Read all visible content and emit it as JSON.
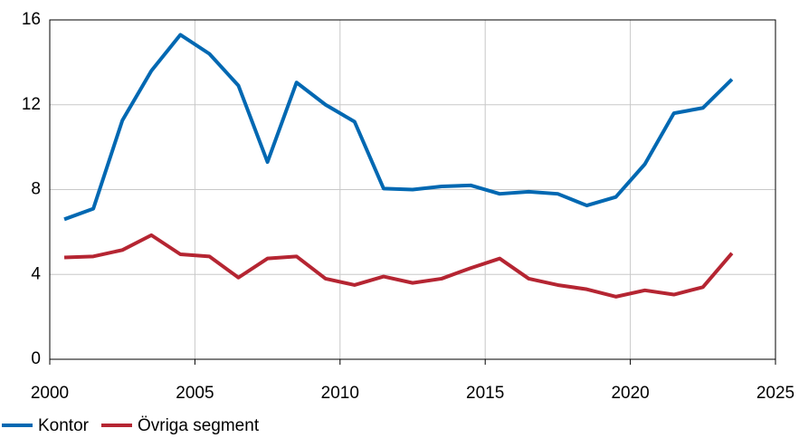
{
  "chart_data": {
    "type": "line",
    "x": [
      2000.5,
      2001.5,
      2002.5,
      2003.5,
      2004.5,
      2005.5,
      2006.5,
      2007.5,
      2008.5,
      2009.5,
      2010.5,
      2011.5,
      2012.5,
      2013.5,
      2014.5,
      2015.5,
      2016.5,
      2017.5,
      2018.5,
      2019.5,
      2020.5,
      2021.5,
      2022.5,
      2023.5
    ],
    "series": [
      {
        "name": "Kontor",
        "color": "#0068b2",
        "values": [
          6.6,
          7.1,
          11.26,
          13.6,
          15.3,
          14.4,
          12.9,
          9.3,
          13.05,
          12.0,
          11.2,
          8.05,
          8.0,
          8.15,
          8.2,
          7.8,
          7.9,
          7.8,
          7.25,
          7.65,
          9.2,
          11.6,
          11.85,
          13.2
        ]
      },
      {
        "name": "Övriga segment",
        "color": "#b52532",
        "values": [
          4.8,
          4.85,
          5.15,
          5.85,
          4.95,
          4.85,
          3.85,
          4.75,
          4.85,
          3.8,
          3.5,
          3.9,
          3.6,
          3.8,
          4.3,
          4.75,
          3.8,
          3.5,
          3.3,
          2.95,
          3.25,
          3.05,
          3.4,
          5.0
        ]
      }
    ],
    "xlim": [
      2000,
      2025
    ],
    "xticks": [
      2000,
      2005,
      2010,
      2015,
      2020,
      2025
    ],
    "ylim": [
      0,
      16
    ],
    "yticks": [
      0,
      4,
      8,
      12,
      16
    ],
    "grid": true,
    "legend": "bottom-left"
  }
}
